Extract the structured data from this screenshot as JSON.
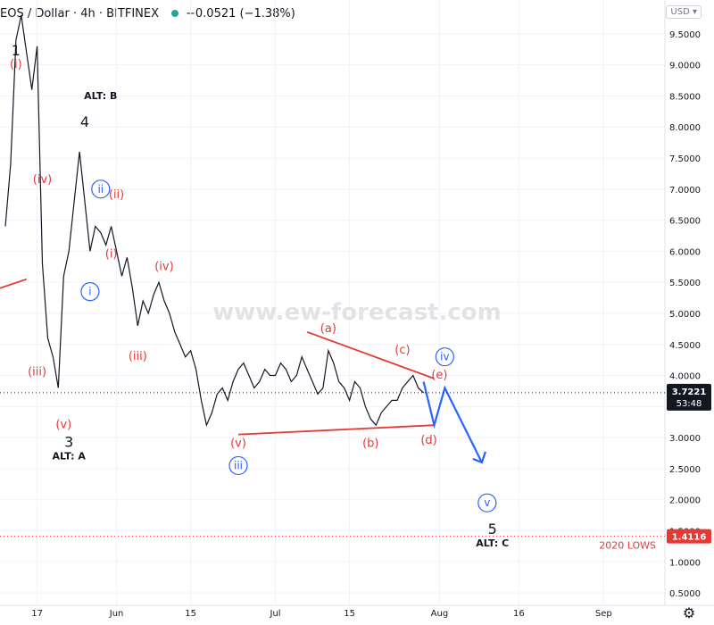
{
  "header": {
    "symbol": "EOS / Dollar · 4h · BITFINEX",
    "change": "−0.0521 (−1.38%)",
    "currency": "USD"
  },
  "watermark": "www.ew-forecast.com",
  "price_tags": {
    "current": "3.7221",
    "countdown": "53:48",
    "lows": "1.4116",
    "lows_label": "2020 LOWS"
  },
  "colors": {
    "red": "#e53935",
    "blue": "#2962ff",
    "grid": "#f0f3fa",
    "candle": "#131722",
    "axis_text": "#131722"
  },
  "chart_data": {
    "type": "line",
    "title": "",
    "xlabel": "",
    "ylabel": "",
    "ylim": [
      0.3,
      9.9
    ],
    "yticks": [
      "0.5000",
      "1.0000",
      "1.5000",
      "2.0000",
      "2.5000",
      "3.0000",
      "3.5000",
      "4.0000",
      "4.5000",
      "5.0000",
      "5.5000",
      "6.0000",
      "6.5000",
      "7.0000",
      "7.5000",
      "8.0000",
      "8.5000",
      "9.0000",
      "9.5000"
    ],
    "x_ticks": [
      "17",
      "Jun",
      "15",
      "Jul",
      "15",
      "Aug",
      "16",
      "Sep"
    ],
    "series": [
      {
        "x": [
          "May 11",
          "May 12",
          "May 13",
          "May 14",
          "May 15",
          "May 16",
          "May 17",
          "May 18",
          "May 19",
          "May 20",
          "May 21",
          "May 22",
          "May 23",
          "May 24",
          "May 25",
          "May 26",
          "May 27",
          "May 28",
          "May 29",
          "May 30",
          "May 31",
          "Jun 1",
          "Jun 2",
          "Jun 3",
          "Jun 4",
          "Jun 5",
          "Jun 6",
          "Jun 7",
          "Jun 8",
          "Jun 9",
          "Jun 10",
          "Jun 11",
          "Jun 12",
          "Jun 13",
          "Jun 14",
          "Jun 15",
          "Jun 16",
          "Jun 17",
          "Jun 18",
          "Jun 19",
          "Jun 20",
          "Jun 21",
          "Jun 22",
          "Jun 23",
          "Jun 24",
          "Jun 25",
          "Jun 26",
          "Jun 27",
          "Jun 28",
          "Jun 29",
          "Jun 30",
          "Jul 1",
          "Jul 2",
          "Jul 3",
          "Jul 4",
          "Jul 5",
          "Jul 6",
          "Jul 7",
          "Jul 8",
          "Jul 9",
          "Jul 10",
          "Jul 11",
          "Jul 12",
          "Jul 13",
          "Jul 14",
          "Jul 15",
          "Jul 16",
          "Jul 17",
          "Jul 18",
          "Jul 19",
          "Jul 20",
          "Jul 21",
          "Jul 22",
          "Jul 23",
          "Jul 24",
          "Jul 25",
          "Jul 26",
          "Jul 27",
          "Jul 28",
          "Jul 29"
        ],
        "values": [
          6.4,
          7.4,
          9.4,
          9.8,
          9.2,
          8.6,
          9.3,
          5.8,
          4.6,
          4.3,
          3.8,
          5.6,
          6.0,
          6.8,
          7.6,
          6.8,
          6.0,
          6.4,
          6.3,
          6.1,
          6.4,
          6.0,
          5.6,
          5.9,
          5.4,
          4.8,
          5.2,
          5.0,
          5.3,
          5.5,
          5.2,
          5.0,
          4.7,
          4.5,
          4.3,
          4.4,
          4.1,
          3.6,
          3.2,
          3.4,
          3.7,
          3.8,
          3.6,
          3.9,
          4.1,
          4.2,
          4.0,
          3.8,
          3.9,
          4.1,
          4.0,
          4.0,
          4.2,
          4.1,
          3.9,
          4.0,
          4.3,
          4.1,
          3.9,
          3.7,
          3.8,
          4.4,
          4.2,
          3.9,
          3.8,
          3.6,
          3.9,
          3.8,
          3.5,
          3.3,
          3.2,
          3.4,
          3.5,
          3.6,
          3.6,
          3.8,
          3.9,
          4.0,
          3.8,
          3.72
        ]
      }
    ],
    "projection": {
      "x": [
        "Jul 29",
        "Jul 31",
        "Aug 2",
        "Aug 9"
      ],
      "values": [
        3.9,
        3.2,
        3.8,
        2.6
      ]
    },
    "annotations": {
      "labels": [
        {
          "text": "1",
          "x": "May 13",
          "y": 9.15,
          "color": "black"
        },
        {
          "text": "(i)",
          "x": "May 13",
          "y": 8.95,
          "color": "red"
        },
        {
          "text": "ALT: B",
          "x": "May 29",
          "y": 8.45,
          "color": "black"
        },
        {
          "text": "4",
          "x": "May 26",
          "y": 8.0,
          "color": "black"
        },
        {
          "text": "(iv)",
          "x": "May 18",
          "y": 7.1,
          "color": "red"
        },
        {
          "text": "(ii)",
          "x": "Jun 1",
          "y": 6.85,
          "color": "red"
        },
        {
          "text": "(i)",
          "x": "May 31",
          "y": 5.9,
          "color": "red"
        },
        {
          "text": "(iv)",
          "x": "Jun 10",
          "y": 5.7,
          "color": "red"
        },
        {
          "text": "(iii)",
          "x": "May 17",
          "y": 4.0,
          "color": "red"
        },
        {
          "text": "(iii)",
          "x": "Jun 5",
          "y": 4.25,
          "color": "red"
        },
        {
          "text": "(v)",
          "x": "May 22",
          "y": 3.15,
          "color": "red"
        },
        {
          "text": "3",
          "x": "May 23",
          "y": 2.85,
          "color": "black"
        },
        {
          "text": "ALT: A",
          "x": "May 23",
          "y": 2.65,
          "color": "black"
        },
        {
          "text": "(a)",
          "x": "Jul 11",
          "y": 4.7,
          "color": "red"
        },
        {
          "text": "(c)",
          "x": "Jul 25",
          "y": 4.35,
          "color": "red"
        },
        {
          "text": "(e)",
          "x": "Aug 1",
          "y": 3.95,
          "color": "red"
        },
        {
          "text": "(d)",
          "x": "Jul 30",
          "y": 2.9,
          "color": "red"
        },
        {
          "text": "(b)",
          "x": "Jul 19",
          "y": 2.85,
          "color": "red"
        },
        {
          "text": "(v)",
          "x": "Jun 24",
          "y": 2.85,
          "color": "red"
        },
        {
          "text": "5",
          "x": "Aug 11",
          "y": 1.45,
          "color": "black"
        },
        {
          "text": "ALT: C",
          "x": "Aug 11",
          "y": 1.25,
          "color": "black"
        }
      ],
      "circled": [
        {
          "text": "ii",
          "x": "May 29",
          "y": 7.0
        },
        {
          "text": "i",
          "x": "May 27",
          "y": 5.35
        },
        {
          "text": "iii",
          "x": "Jun 24",
          "y": 2.55
        },
        {
          "text": "iv",
          "x": "Aug 2",
          "y": 4.3
        },
        {
          "text": "v",
          "x": "Aug 10",
          "y": 1.95
        }
      ],
      "lines": [
        {
          "from": [
            "May 1",
            5.15
          ],
          "to": [
            "May 15",
            5.55
          ]
        },
        {
          "from": [
            "Jul 7",
            4.7
          ],
          "to": [
            "Jul 31",
            3.95
          ]
        },
        {
          "from": [
            "Jun 24",
            3.05
          ],
          "to": [
            "Jul 31",
            3.2
          ]
        }
      ]
    }
  }
}
